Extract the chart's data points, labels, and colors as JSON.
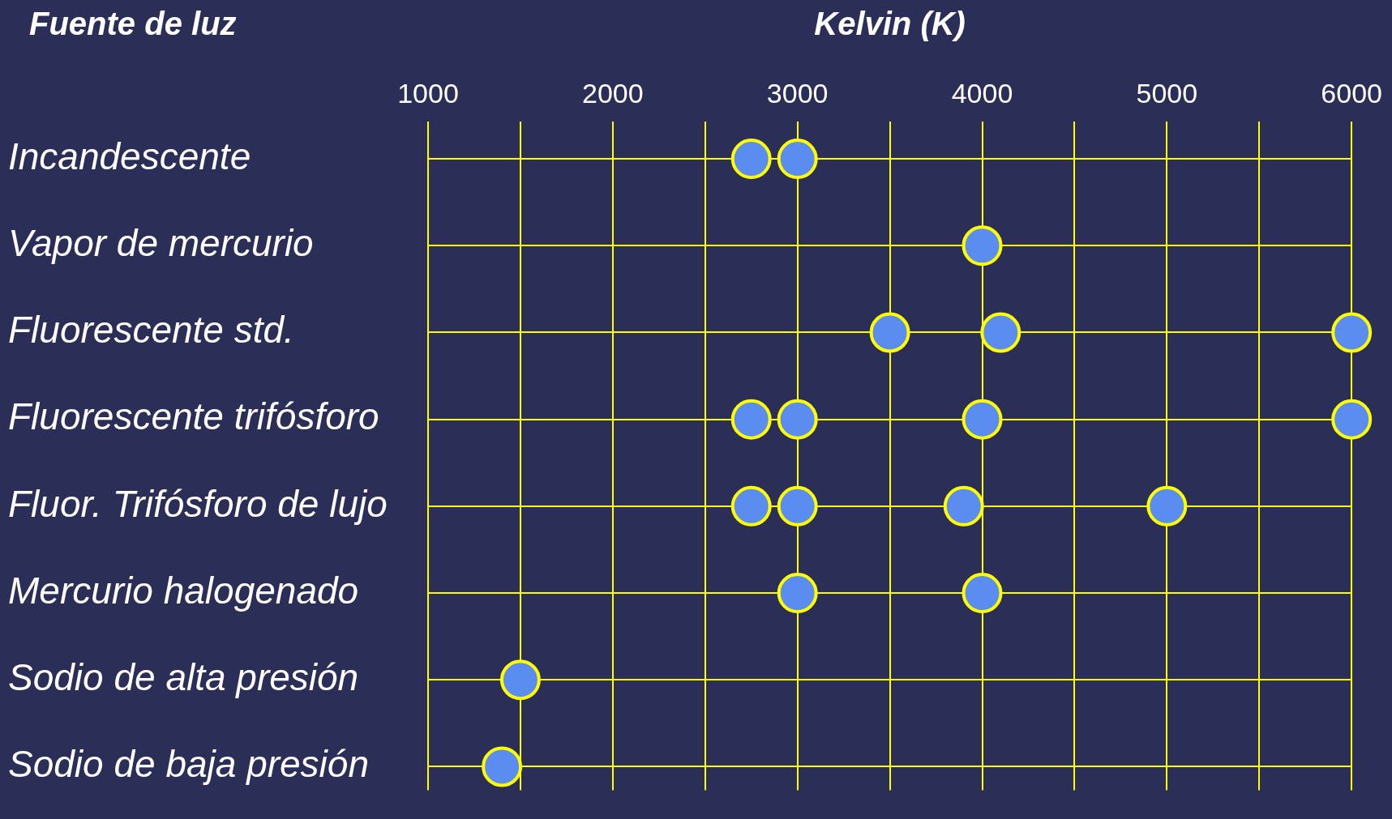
{
  "chart_data": {
    "type": "scatter",
    "orientation": "horizontal",
    "xlabel": "Kelvin (K)",
    "ylabel": "Fuente de luz",
    "categories": [
      "Incandescente",
      "Vapor de mercurio",
      "Fluorescente std.",
      "Fluorescente trifósforo",
      "Fluor. Trifósforo de lujo",
      "Mercurio halogenado",
      "Sodio de alta presión",
      "Sodio de baja presión"
    ],
    "series": [
      {
        "color": "#5b8cf0",
        "values": [
          2750,
          4000,
          3500,
          2750,
          2750,
          3000,
          1500,
          1400
        ]
      },
      {
        "color": "#5b8cf0",
        "values": [
          3000,
          null,
          4100,
          3000,
          3000,
          4000,
          null,
          null
        ]
      },
      {
        "color": "#5b8cf0",
        "values": [
          null,
          null,
          6000,
          4000,
          3900,
          null,
          null,
          null
        ]
      },
      {
        "color": "#5b8cf0",
        "values": [
          null,
          null,
          null,
          6000,
          5000,
          null,
          null,
          null
        ]
      }
    ],
    "xlim": [
      1000,
      6000
    ],
    "xticks": [
      1000,
      {
        "value": 1500,
        "label": null
      },
      2000,
      {
        "value": 2500,
        "label": null
      },
      3000,
      {
        "value": 3500,
        "label": null
      },
      4000,
      {
        "value": 4500,
        "label": null
      },
      5000,
      {
        "value": 5500,
        "label": null
      },
      6000
    ],
    "grid": true,
    "marker": "circle",
    "legend": false
  }
}
